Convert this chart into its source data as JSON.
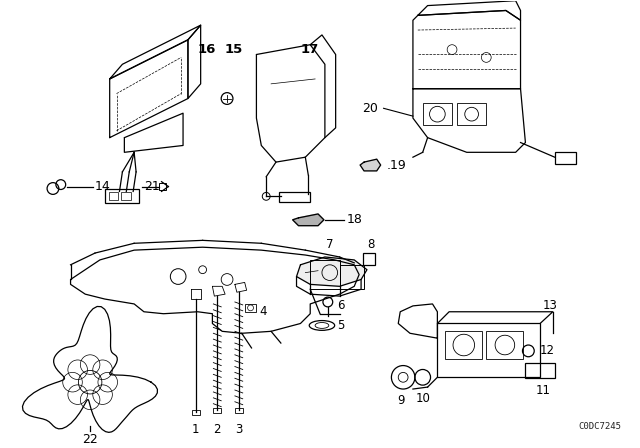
{
  "bg_color": "#ffffff",
  "line_color": "#000000",
  "fig_width": 6.4,
  "fig_height": 4.48,
  "dpi": 100,
  "watermark": "C0DC7245"
}
